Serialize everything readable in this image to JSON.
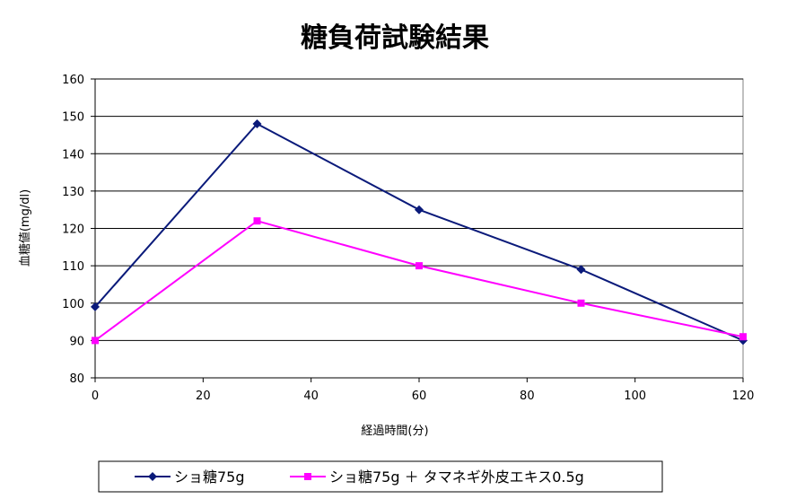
{
  "chart_data": {
    "type": "line",
    "title": "糖負荷試験結果",
    "xlabel": "経過時間(分)",
    "ylabel": "血糖値(mg/dl)",
    "x": [
      0,
      30,
      60,
      90,
      120
    ],
    "xlim": [
      0,
      120
    ],
    "ylim": [
      80,
      160
    ],
    "x_ticks": [
      0,
      20,
      40,
      60,
      80,
      100,
      120
    ],
    "y_ticks": [
      80,
      90,
      100,
      110,
      120,
      130,
      140,
      150,
      160
    ],
    "grid": "horizontal",
    "legend_position": "bottom",
    "series": [
      {
        "name": "ショ糖75g",
        "values": [
          99,
          148,
          125,
          109,
          90
        ],
        "color": "#0a1a7a",
        "marker": "diamond"
      },
      {
        "name": "ショ糖75g ＋ タマネギ外皮エキス0.5g",
        "values": [
          90,
          122,
          110,
          100,
          91
        ],
        "color": "#ff00ff",
        "marker": "square"
      }
    ]
  }
}
